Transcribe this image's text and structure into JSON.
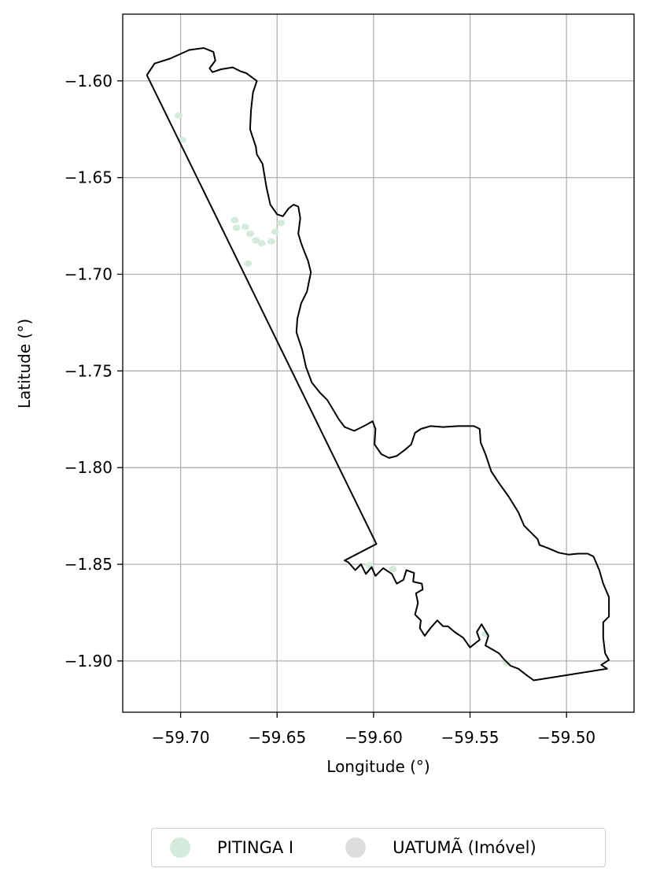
{
  "chart_data": {
    "type": "map",
    "xlabel": "Longitude (°)",
    "ylabel": "Latitude (°)",
    "xlim": [
      -59.73,
      -59.465
    ],
    "ylim": [
      -1.9265,
      -1.5655
    ],
    "grid": true,
    "xticks": [
      {
        "value": -59.7,
        "label": "−59.70"
      },
      {
        "value": -59.65,
        "label": "−59.65"
      },
      {
        "value": -59.6,
        "label": "−59.60"
      },
      {
        "value": -59.55,
        "label": "−59.55"
      },
      {
        "value": -59.5,
        "label": "−59.50"
      }
    ],
    "yticks": [
      {
        "value": -1.6,
        "label": "−1.60"
      },
      {
        "value": -1.65,
        "label": "−1.65"
      },
      {
        "value": -1.7,
        "label": "−1.70"
      },
      {
        "value": -1.75,
        "label": "−1.75"
      },
      {
        "value": -1.8,
        "label": "−1.80"
      },
      {
        "value": -1.85,
        "label": "−1.85"
      },
      {
        "value": -1.9,
        "label": "−1.90"
      }
    ],
    "legend_position": "bottom-center",
    "legend": [
      {
        "label": "PITINGA I",
        "color": "#d2ebdd"
      },
      {
        "label": "UATUMÃ (Imóvel)",
        "color": "#dddddd"
      }
    ],
    "boundary_color": "#000000",
    "boundary": [
      [
        -59.7175,
        -1.597
      ],
      [
        -59.7135,
        -1.591
      ],
      [
        -59.7055,
        -1.5885
      ],
      [
        -59.6955,
        -1.584
      ],
      [
        -59.688,
        -1.583
      ],
      [
        -59.683,
        -1.585
      ],
      [
        -59.682,
        -1.5895
      ],
      [
        -59.685,
        -1.5935
      ],
      [
        -59.6835,
        -1.5955
      ],
      [
        -59.679,
        -1.594
      ],
      [
        -59.673,
        -1.593
      ],
      [
        -59.669,
        -1.595
      ],
      [
        -59.666,
        -1.596
      ],
      [
        -59.6605,
        -1.6
      ],
      [
        -59.6625,
        -1.606
      ],
      [
        -59.6635,
        -1.615
      ],
      [
        -59.664,
        -1.625
      ],
      [
        -59.663,
        -1.628
      ],
      [
        -59.661,
        -1.634
      ],
      [
        -59.6605,
        -1.638
      ],
      [
        -59.6575,
        -1.643
      ],
      [
        -59.6555,
        -1.655
      ],
      [
        -59.6535,
        -1.664
      ],
      [
        -59.65,
        -1.669
      ],
      [
        -59.647,
        -1.67
      ],
      [
        -59.644,
        -1.666
      ],
      [
        -59.6415,
        -1.664
      ],
      [
        -59.639,
        -1.665
      ],
      [
        -59.638,
        -1.671
      ],
      [
        -59.639,
        -1.679
      ],
      [
        -59.6375,
        -1.684
      ],
      [
        -59.636,
        -1.688
      ],
      [
        -59.634,
        -1.693
      ],
      [
        -59.6325,
        -1.699
      ],
      [
        -59.6345,
        -1.709
      ],
      [
        -59.6375,
        -1.715
      ],
      [
        -59.6395,
        -1.723
      ],
      [
        -59.64,
        -1.73
      ],
      [
        -59.637,
        -1.739
      ],
      [
        -59.635,
        -1.748
      ],
      [
        -59.632,
        -1.756
      ],
      [
        -59.628,
        -1.761
      ],
      [
        -59.624,
        -1.765
      ],
      [
        -59.621,
        -1.77
      ],
      [
        -59.618,
        -1.775
      ],
      [
        -59.615,
        -1.779
      ],
      [
        -59.61,
        -1.781
      ],
      [
        -59.604,
        -1.778
      ],
      [
        -59.6005,
        -1.776
      ],
      [
        -59.599,
        -1.78
      ],
      [
        -59.5995,
        -1.788
      ],
      [
        -59.596,
        -1.793
      ],
      [
        -59.592,
        -1.795
      ],
      [
        -59.588,
        -1.794
      ],
      [
        -59.584,
        -1.791
      ],
      [
        -59.5805,
        -1.788
      ],
      [
        -59.5785,
        -1.782
      ],
      [
        -59.5755,
        -1.78
      ],
      [
        -59.5705,
        -1.7785
      ],
      [
        -59.564,
        -1.779
      ],
      [
        -59.556,
        -1.7785
      ],
      [
        -59.548,
        -1.7785
      ],
      [
        -59.545,
        -1.78
      ],
      [
        -59.5445,
        -1.787
      ],
      [
        -59.542,
        -1.793
      ],
      [
        -59.539,
        -1.802
      ],
      [
        -59.535,
        -1.808
      ],
      [
        -59.53,
        -1.815
      ],
      [
        -59.525,
        -1.823
      ],
      [
        -59.522,
        -1.83
      ],
      [
        -59.518,
        -1.834
      ],
      [
        -59.515,
        -1.837
      ],
      [
        -59.514,
        -1.84
      ],
      [
        -59.51,
        -1.8415
      ],
      [
        -59.504,
        -1.844
      ],
      [
        -59.499,
        -1.845
      ],
      [
        -59.494,
        -1.8445
      ],
      [
        -59.489,
        -1.8445
      ],
      [
        -59.486,
        -1.846
      ],
      [
        -59.483,
        -1.853
      ],
      [
        -59.481,
        -1.86
      ],
      [
        -59.478,
        -1.867
      ],
      [
        -59.478,
        -1.877
      ],
      [
        -59.481,
        -1.88
      ],
      [
        -59.481,
        -1.888
      ],
      [
        -59.48,
        -1.896
      ],
      [
        -59.478,
        -1.8995
      ],
      [
        -59.482,
        -1.902
      ],
      [
        -59.479,
        -1.904
      ],
      [
        -59.517,
        -1.91
      ],
      [
        -59.5205,
        -1.9075
      ],
      [
        -59.525,
        -1.904
      ],
      [
        -59.529,
        -1.9025
      ],
      [
        -59.5325,
        -1.899
      ],
      [
        -59.535,
        -1.896
      ],
      [
        -59.5385,
        -1.894
      ],
      [
        -59.542,
        -1.892
      ],
      [
        -59.5405,
        -1.887
      ],
      [
        -59.544,
        -1.881
      ],
      [
        -59.5465,
        -1.885
      ],
      [
        -59.545,
        -1.889
      ],
      [
        -59.55,
        -1.893
      ],
      [
        -59.5535,
        -1.888
      ],
      [
        -59.558,
        -1.885
      ],
      [
        -59.5615,
        -1.882
      ],
      [
        -59.564,
        -1.882
      ],
      [
        -59.567,
        -1.879
      ],
      [
        -59.5705,
        -1.883
      ],
      [
        -59.5735,
        -1.887
      ],
      [
        -59.576,
        -1.883
      ],
      [
        -59.5755,
        -1.879
      ],
      [
        -59.5785,
        -1.876
      ],
      [
        -59.577,
        -1.87
      ],
      [
        -59.578,
        -1.865
      ],
      [
        -59.5745,
        -1.863
      ],
      [
        -59.575,
        -1.86
      ],
      [
        -59.5795,
        -1.859
      ],
      [
        -59.579,
        -1.8545
      ],
      [
        -59.583,
        -1.853
      ],
      [
        -59.5845,
        -1.858
      ],
      [
        -59.588,
        -1.86
      ],
      [
        -59.5905,
        -1.855
      ],
      [
        -59.595,
        -1.852
      ],
      [
        -59.599,
        -1.856
      ],
      [
        -59.601,
        -1.8515
      ],
      [
        -59.604,
        -1.855
      ],
      [
        -59.6065,
        -1.85
      ],
      [
        -59.6095,
        -1.853
      ],
      [
        -59.613,
        -1.849
      ],
      [
        -59.615,
        -1.848
      ],
      [
        -59.5985,
        -1.8395
      ],
      [
        -59.7175,
        -1.597
      ]
    ],
    "pitinga_patches": [
      {
        "lon": -59.701,
        "lat": -1.618
      },
      {
        "lon": -59.699,
        "lat": -1.6305
      },
      {
        "lon": -59.672,
        "lat": -1.672
      },
      {
        "lon": -59.671,
        "lat": -1.676
      },
      {
        "lon": -59.6665,
        "lat": -1.6755
      },
      {
        "lon": -59.664,
        "lat": -1.679
      },
      {
        "lon": -59.661,
        "lat": -1.6825
      },
      {
        "lon": -59.658,
        "lat": -1.684
      },
      {
        "lon": -59.653,
        "lat": -1.683
      },
      {
        "lon": -59.651,
        "lat": -1.678
      },
      {
        "lon": -59.648,
        "lat": -1.6735
      },
      {
        "lon": -59.665,
        "lat": -1.6945
      },
      {
        "lon": -59.602,
        "lat": -1.8505
      },
      {
        "lon": -59.59,
        "lat": -1.8525
      },
      {
        "lon": -59.542,
        "lat": -1.886
      },
      {
        "lon": -59.531,
        "lat": -1.901
      }
    ]
  }
}
